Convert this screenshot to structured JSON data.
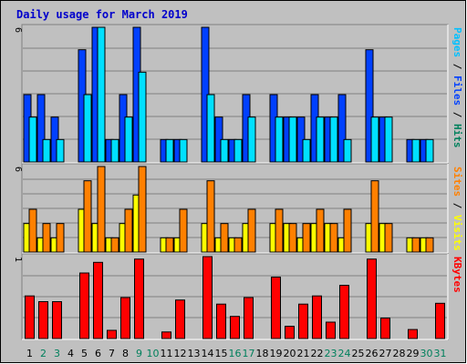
{
  "chart_data": {
    "type": "bar",
    "title": "Daily usage for March 2019",
    "categories": [
      "1",
      "2",
      "3",
      "4",
      "5",
      "6",
      "7",
      "8",
      "9",
      "10",
      "11",
      "12",
      "13",
      "14",
      "15",
      "16",
      "17",
      "18",
      "19",
      "20",
      "21",
      "22",
      "23",
      "24",
      "25",
      "26",
      "27",
      "28",
      "29",
      "30",
      "31"
    ],
    "weekend_days": [
      "2",
      "3",
      "9",
      "10",
      "16",
      "17",
      "23",
      "24",
      "30",
      "31"
    ],
    "colors": {
      "hits": "#0040ff",
      "files": "#00e0ff",
      "visits": "#ff8000",
      "sites": "#ffff00",
      "kbytes": "#ff0000",
      "weekday_label": "#000000",
      "weekend_label": "#00805c",
      "pages_label": "#00c0ff",
      "sep": "#000000",
      "files_label": "#0040ff",
      "hits_label": "#00805c"
    },
    "panels": [
      {
        "id": "hits",
        "ymax_label": "6",
        "ymax": 6,
        "series": [
          {
            "key": "hits",
            "values": [
              3,
              3,
              2,
              0,
              5,
              6,
              1,
              3,
              6,
              0,
              1,
              1,
              0,
              6,
              2,
              1,
              3,
              0,
              3,
              2,
              2,
              3,
              2,
              3,
              0,
              5,
              2,
              0,
              1,
              1,
              0
            ]
          },
          {
            "key": "files",
            "values": [
              2,
              1,
              1,
              0,
              3,
              6,
              1,
              2,
              4,
              0,
              1,
              1,
              0,
              3,
              1,
              1,
              2,
              0,
              2,
              2,
              1,
              2,
              2,
              1,
              0,
              2,
              2,
              0,
              1,
              1,
              0
            ]
          }
        ],
        "right_label": [
          {
            "text": "Pages",
            "color_key": "pages_label"
          },
          {
            "text": " / ",
            "color_key": "sep"
          },
          {
            "text": "Files",
            "color_key": "files_label"
          },
          {
            "text": " / ",
            "color_key": "sep"
          },
          {
            "text": "Hits",
            "color_key": "hits_label"
          }
        ]
      },
      {
        "id": "visits",
        "ymax_label": "6",
        "ymax": 6,
        "series": [
          {
            "key": "sites",
            "values": [
              2,
              1,
              1,
              0,
              3,
              2,
              1,
              2,
              4,
              0,
              1,
              1,
              0,
              2,
              1,
              1,
              2,
              0,
              2,
              2,
              1,
              2,
              2,
              1,
              0,
              2,
              2,
              0,
              1,
              1,
              0
            ]
          },
          {
            "key": "visits",
            "values": [
              3,
              2,
              2,
              0,
              5,
              6,
              1,
              3,
              6,
              0,
              1,
              3,
              0,
              5,
              2,
              1,
              3,
              0,
              3,
              2,
              2,
              3,
              2,
              3,
              0,
              5,
              2,
              0,
              1,
              1,
              0
            ]
          }
        ],
        "right_label": [
          {
            "text": "Sites",
            "color_key": "visits"
          },
          {
            "text": " / ",
            "color_key": "sep"
          },
          {
            "text": "Visits",
            "color_key": "sites"
          }
        ]
      },
      {
        "id": "kbytes",
        "ymax_label": "1",
        "ymax": 1,
        "series": [
          {
            "key": "kbytes",
            "values": [
              0.52,
              0.45,
              0.45,
              0,
              0.8,
              0.93,
              0.1,
              0.5,
              0.97,
              0,
              0.08,
              0.47,
              0,
              1.0,
              0.42,
              0.27,
              0.5,
              0,
              0.75,
              0.15,
              0.42,
              0.52,
              0.2,
              0.65,
              0,
              0.97,
              0.25,
              0,
              0.11,
              0,
              0.43
            ]
          }
        ],
        "right_label": [
          {
            "text": "KBytes",
            "color_key": "kbytes"
          }
        ]
      }
    ]
  }
}
